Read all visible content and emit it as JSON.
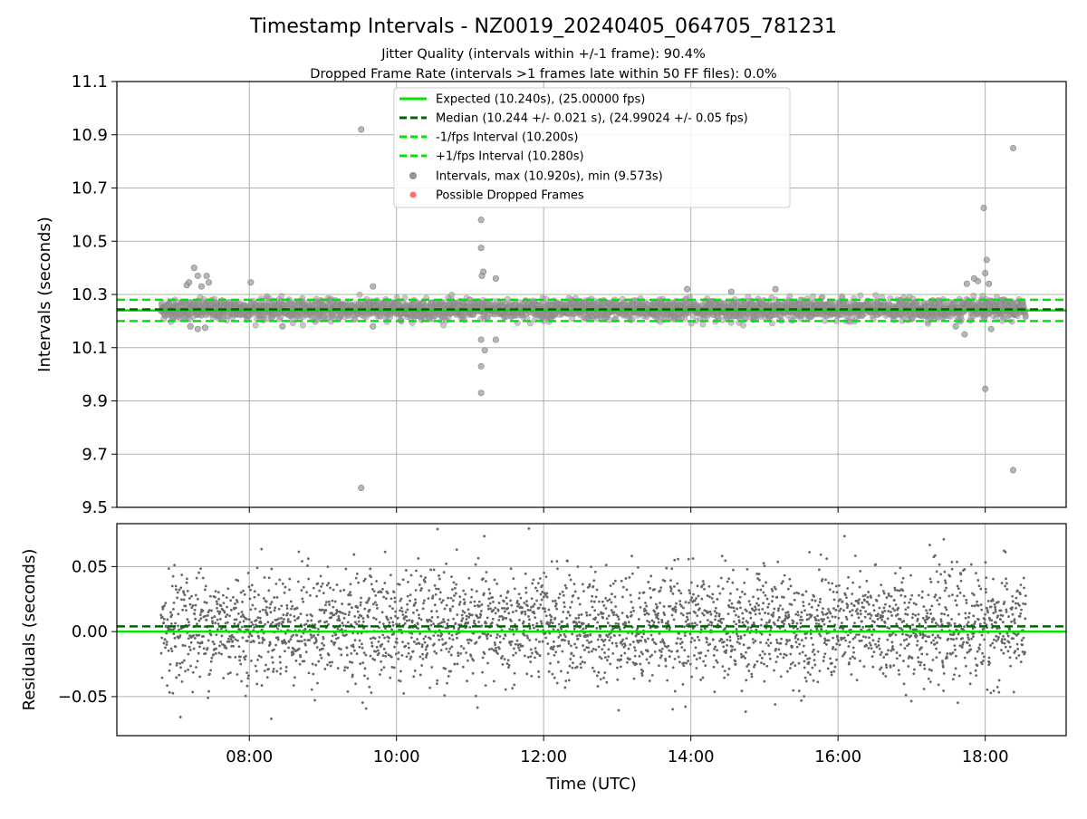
{
  "chart_data": [
    {
      "type": "scatter",
      "title": "Timestamp Intervals - NZ0019_20240405_064705_781231",
      "subtitle_lines": [
        "Jitter Quality (intervals within +/-1 frame): 90.4%",
        "Dropped Frame Rate (intervals >1 frames late within 50 FF files): 0.0%"
      ],
      "xlabel": "",
      "ylabel": "Intervals (seconds)",
      "xlim_hours": [
        6.2,
        19.1
      ],
      "ylim": [
        9.5,
        11.1
      ],
      "yticks": [
        9.5,
        9.7,
        9.9,
        10.1,
        10.3,
        10.5,
        10.7,
        10.9,
        11.1
      ],
      "ytick_labels": [
        "9.5",
        "9.7",
        "9.9",
        "10.1",
        "10.3",
        "10.5",
        "10.7",
        "10.9",
        "11.1"
      ],
      "xticks_hours": [
        8,
        10,
        12,
        14,
        16,
        18
      ],
      "grid": true,
      "legend_position": "upper center",
      "legend": [
        {
          "label": "Expected (10.240s), (25.00000 fps)",
          "kind": "solid-line",
          "color": "#00e600"
        },
        {
          "label": "Median (10.244 +/- 0.021 s), (24.99024 +/- 0.05 fps)",
          "kind": "dashed-line",
          "color": "#006400"
        },
        {
          "label": "-1/fps Interval (10.200s)",
          "kind": "dashed-line",
          "color": "#00e600"
        },
        {
          "label": "+1/fps Interval (10.280s)",
          "kind": "dashed-line",
          "color": "#00e600"
        },
        {
          "label": "Intervals, max (10.920s), min (9.573s)",
          "kind": "marker",
          "color": "#999999"
        },
        {
          "label": "Possible Dropped Frames",
          "kind": "marker",
          "color": "#ff4d4d"
        }
      ],
      "reference_lines": [
        {
          "name": "Expected",
          "y": 10.24,
          "style": "solid",
          "color": "#00e600"
        },
        {
          "name": "Median",
          "y": 10.244,
          "style": "dashed",
          "color": "#006400"
        },
        {
          "name": "-1/fps Interval",
          "y": 10.2,
          "style": "dashed",
          "color": "#00e600"
        },
        {
          "name": "+1/fps Interval",
          "y": 10.28,
          "style": "dashed",
          "color": "#00e600"
        }
      ],
      "series_band": {
        "x_range_hours": [
          6.8,
          18.55
        ],
        "y_mean": 10.244,
        "y_std": 0.021,
        "marker_color": "#999999"
      },
      "outliers": [
        {
          "x": 7.15,
          "y": 10.335
        },
        {
          "x": 7.18,
          "y": 10.345
        },
        {
          "x": 7.25,
          "y": 10.4
        },
        {
          "x": 7.3,
          "y": 10.37
        },
        {
          "x": 7.35,
          "y": 10.33
        },
        {
          "x": 7.42,
          "y": 10.37
        },
        {
          "x": 7.45,
          "y": 10.345
        },
        {
          "x": 7.2,
          "y": 10.18
        },
        {
          "x": 7.3,
          "y": 10.17
        },
        {
          "x": 7.4,
          "y": 10.175
        },
        {
          "x": 8.02,
          "y": 10.345
        },
        {
          "x": 8.45,
          "y": 10.18
        },
        {
          "x": 9.52,
          "y": 10.92
        },
        {
          "x": 9.52,
          "y": 9.573
        },
        {
          "x": 9.68,
          "y": 10.33
        },
        {
          "x": 9.68,
          "y": 10.18
        },
        {
          "x": 11.15,
          "y": 10.58
        },
        {
          "x": 11.15,
          "y": 10.475
        },
        {
          "x": 11.18,
          "y": 10.385
        },
        {
          "x": 11.16,
          "y": 10.37
        },
        {
          "x": 11.35,
          "y": 10.36
        },
        {
          "x": 11.15,
          "y": 10.13
        },
        {
          "x": 11.15,
          "y": 10.03
        },
        {
          "x": 11.15,
          "y": 9.93
        },
        {
          "x": 11.2,
          "y": 10.09
        },
        {
          "x": 11.35,
          "y": 10.13
        },
        {
          "x": 13.95,
          "y": 10.32
        },
        {
          "x": 14.55,
          "y": 10.31
        },
        {
          "x": 15.15,
          "y": 10.32
        },
        {
          "x": 17.6,
          "y": 10.18
        },
        {
          "x": 17.72,
          "y": 10.15
        },
        {
          "x": 17.75,
          "y": 10.34
        },
        {
          "x": 17.85,
          "y": 10.36
        },
        {
          "x": 17.9,
          "y": 10.35
        },
        {
          "x": 17.98,
          "y": 10.625
        },
        {
          "x": 18.02,
          "y": 10.43
        },
        {
          "x": 18.0,
          "y": 10.38
        },
        {
          "x": 18.0,
          "y": 9.945
        },
        {
          "x": 18.05,
          "y": 10.34
        },
        {
          "x": 18.08,
          "y": 10.17
        },
        {
          "x": 18.38,
          "y": 10.85
        },
        {
          "x": 18.38,
          "y": 9.64
        }
      ]
    },
    {
      "type": "scatter",
      "xlabel": "Time (UTC)",
      "ylabel": "Residuals (seconds)",
      "xlim_hours": [
        6.2,
        19.1
      ],
      "ylim": [
        -0.08,
        0.083
      ],
      "yticks": [
        -0.05,
        0.0,
        0.05
      ],
      "ytick_labels": [
        "−0.05",
        "0.00",
        "0.05"
      ],
      "xticks_hours": [
        8,
        10,
        12,
        14,
        16,
        18
      ],
      "xtick_labels": [
        "08:00",
        "10:00",
        "12:00",
        "14:00",
        "16:00",
        "18:00"
      ],
      "grid": true,
      "reference_lines": [
        {
          "name": "Expected",
          "y": 0.0,
          "style": "solid",
          "color": "#00e600"
        },
        {
          "name": "Median",
          "y": 0.004,
          "style": "dashed",
          "color": "#006400"
        }
      ],
      "series_band": {
        "x_range_hours": [
          6.8,
          18.55
        ],
        "y_mean": 0.004,
        "y_std": 0.021,
        "marker_color": "#666666"
      }
    }
  ]
}
